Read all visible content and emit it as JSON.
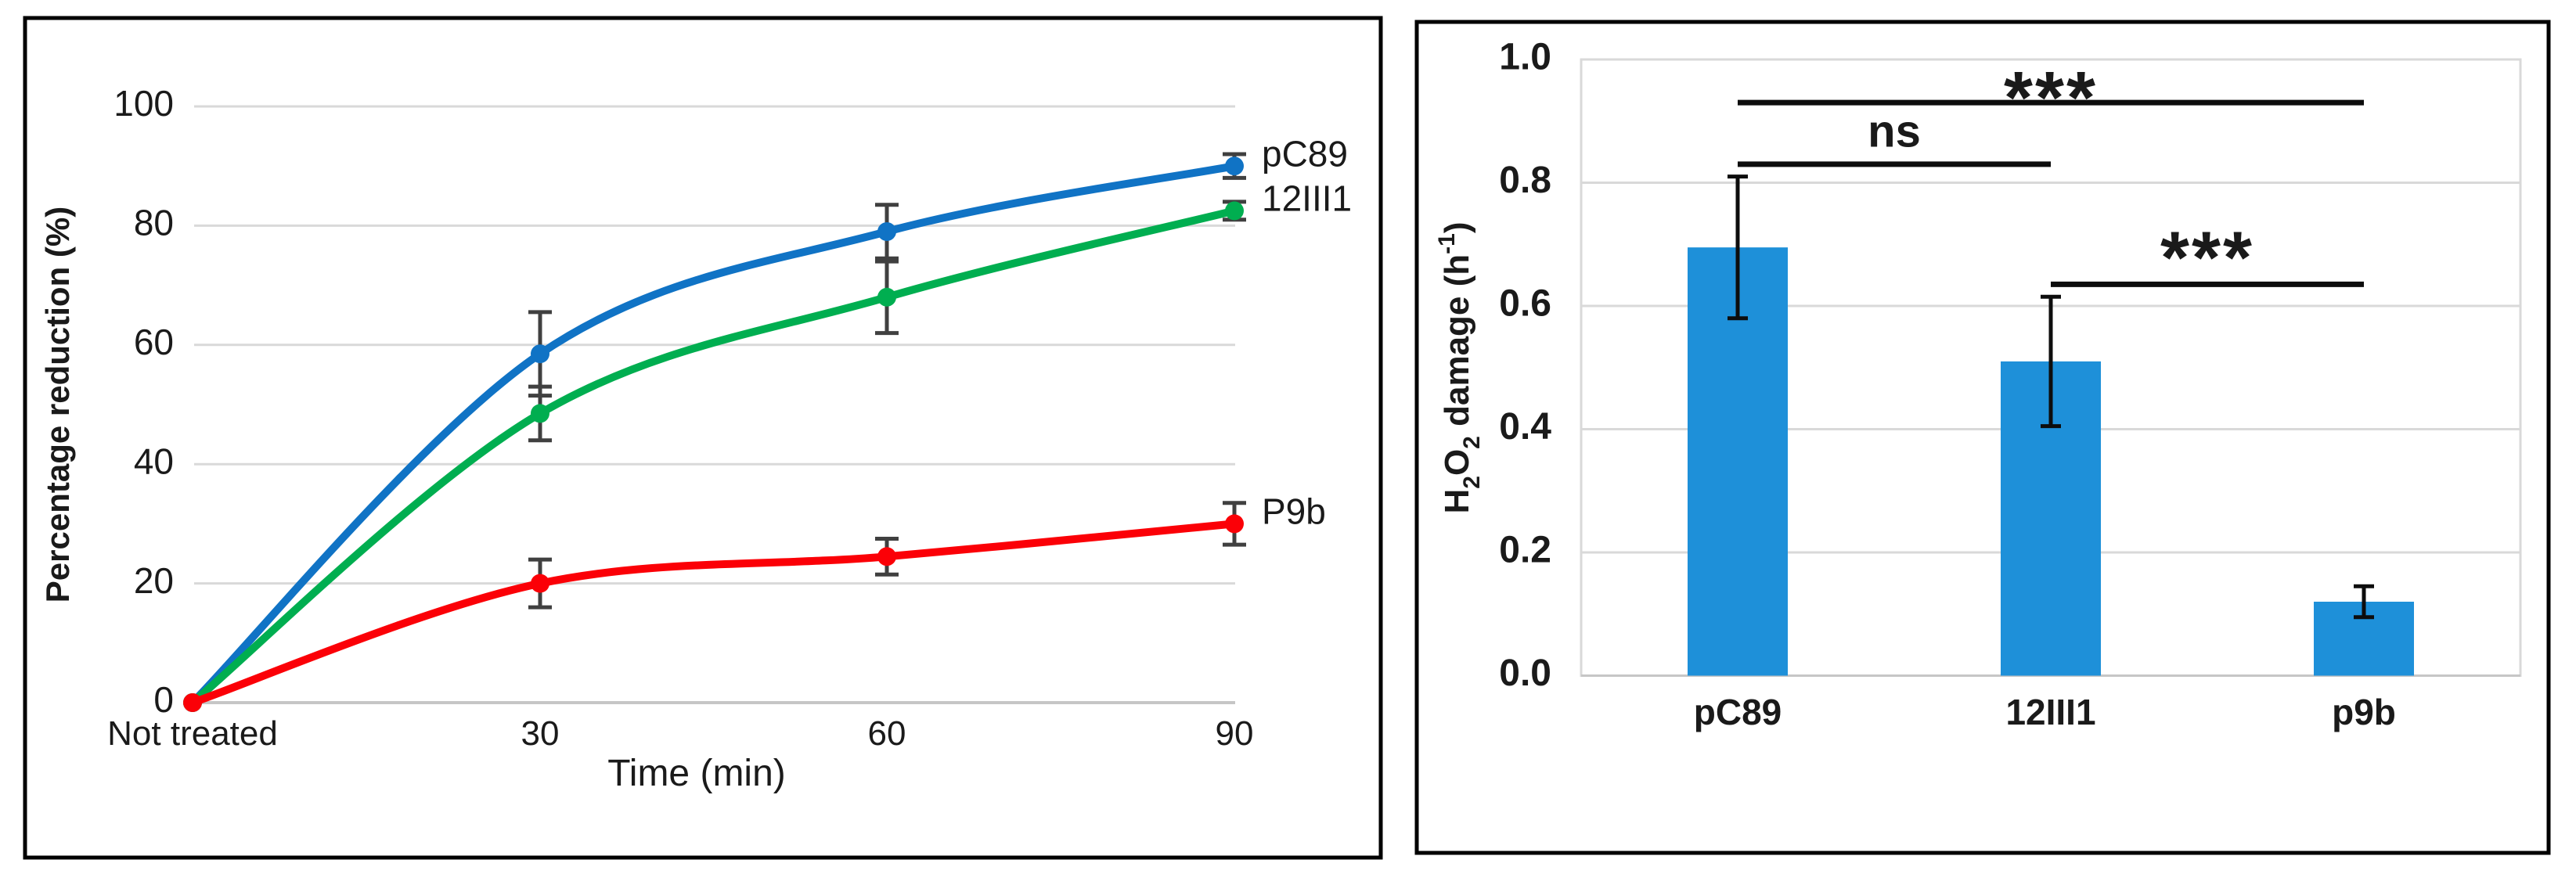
{
  "figure": {
    "background": "#ffffff",
    "panel_border_color": "#000000",
    "grid_color": "#d9d9d9",
    "axis_line_color": "#c6c6c6"
  },
  "chart_data": [
    {
      "type": "line",
      "panel": "left",
      "title": "",
      "xlabel": "Time (min)",
      "ylabel": "Percentage reduction (%)",
      "categories": [
        "Not treated",
        "30",
        "60",
        "90"
      ],
      "y_ticks": {
        "values": [
          0,
          20,
          40,
          60,
          80,
          100
        ],
        "labels": [
          "0",
          "20",
          "40",
          "60",
          "80",
          "100"
        ]
      },
      "ylim": [
        0,
        100
      ],
      "grid": true,
      "legend_position": "right-of-last-point",
      "error_bar_color": "#404040",
      "series": [
        {
          "name": "pC89",
          "color": "#1073c5",
          "values": [
            0,
            58.5,
            79,
            90
          ],
          "errors": [
            0,
            7,
            4.5,
            2
          ]
        },
        {
          "name": "12III1",
          "color": "#00ae50",
          "values": [
            0,
            48.5,
            68,
            82.5
          ],
          "errors": [
            0,
            4.5,
            6,
            1.5
          ]
        },
        {
          "name": "P9b",
          "color": "#fb0007",
          "values": [
            0,
            20,
            24.5,
            30
          ],
          "errors": [
            0,
            4,
            3,
            3.5
          ]
        }
      ]
    },
    {
      "type": "bar",
      "panel": "right",
      "title": "",
      "xlabel": "",
      "ylabel_parts": [
        {
          "t": "H"
        },
        {
          "t": "2",
          "style": "sub"
        },
        {
          "t": "O"
        },
        {
          "t": "2",
          "style": "sub"
        },
        {
          "t": " damage (h"
        },
        {
          "t": "-1",
          "style": "sup"
        },
        {
          "t": ")"
        }
      ],
      "categories": [
        "pC89",
        "12III1",
        "p9b"
      ],
      "values": [
        0.695,
        0.51,
        0.12
      ],
      "errors": [
        0.115,
        0.105,
        0.025
      ],
      "bar_color": "#1e90d9",
      "error_bar_color": "#0d0d0d",
      "y_ticks": {
        "values": [
          0,
          0.2,
          0.4,
          0.6,
          0.8,
          1.0
        ],
        "labels": [
          "0.0",
          "0.2",
          "0.4",
          "0.6",
          "0.8",
          "1.0"
        ]
      },
      "ylim": [
        0,
        1
      ],
      "grid": true,
      "significance": [
        {
          "label": "ns",
          "from": 0,
          "to": 1,
          "line_value": 0.83,
          "text_value": 0.878
        },
        {
          "label": "***",
          "from": 0,
          "to": 2,
          "line_value": 0.93,
          "text_value": 0.972
        },
        {
          "label": "***",
          "from": 1,
          "to": 2,
          "line_value": 0.635,
          "text_value": 0.712
        }
      ]
    }
  ]
}
